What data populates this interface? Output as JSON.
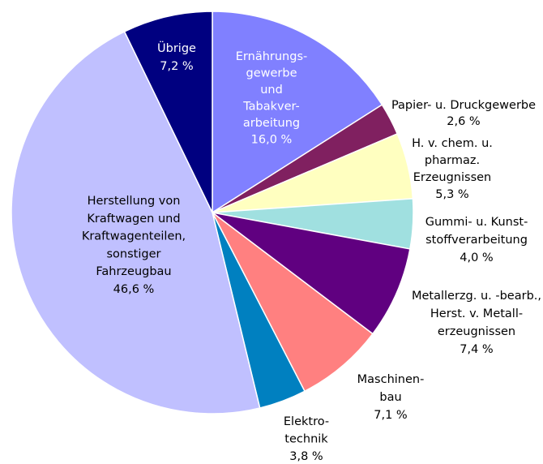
{
  "chart_data": {
    "type": "pie",
    "categories": [
      [
        "Ernährungs-",
        "gewerbe",
        "und",
        "Tabakver-",
        "arbeitung"
      ],
      [
        "Papier- u. Druckgewerbe"
      ],
      [
        "H. v. chem. u.",
        "pharmaz.",
        "Erzeugnissen"
      ],
      [
        "Gummi- u. Kunst-",
        "stoffverarbeitung"
      ],
      [
        "Metallerzg. u. -bearb.,",
        "Herst. v. Metall-",
        "erzeugnissen"
      ],
      [
        "Maschinen-",
        "bau"
      ],
      [
        "Elektro-",
        "technik"
      ],
      [
        "Herstellung von",
        "Kraftwagen und",
        "Kraftwagenteilen,",
        "sonstiger",
        "Fahrzeugbau"
      ],
      [
        "Übrige"
      ]
    ],
    "values": [
      16.0,
      2.6,
      5.3,
      4.0,
      7.4,
      7.1,
      3.8,
      46.6,
      7.2
    ],
    "value_labels": [
      "16,0 %",
      "2,6 %",
      "5,3 %",
      "4,0 %",
      "7,4 %",
      "7,1 %",
      "3,8 %",
      "46,6 %",
      "7,2 %"
    ],
    "colors": [
      "#8080ff",
      "#802060",
      "#ffffc0",
      "#a0e0e0",
      "#600080",
      "#ff8080",
      "#0080c0",
      "#c0c0ff",
      "#000080"
    ]
  }
}
